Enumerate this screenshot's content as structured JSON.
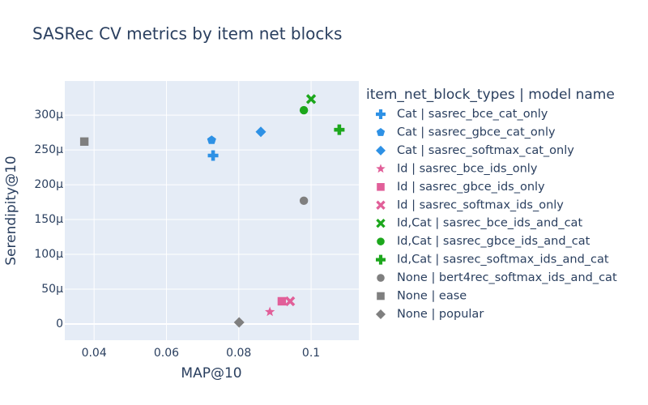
{
  "chart_data": {
    "type": "scatter",
    "title": "SASRec CV metrics by item net blocks",
    "x_label": "MAP@10",
    "y_label": "Serendipity@10",
    "legend_title": "item_net_block_types  |  model name",
    "xlim": [
      0.0319,
      0.1132
    ],
    "ylim": [
      -2.33e-05,
      0.000349
    ],
    "xticks": [
      0.04,
      0.06,
      0.08,
      0.1
    ],
    "yticks": [
      0,
      {
        "value": 5e-05,
        "label": "50µ"
      },
      {
        "value": 0.0001,
        "label": "100µ"
      },
      {
        "value": 0.00015,
        "label": "150µ"
      },
      {
        "value": 0.0002,
        "label": "200µ"
      },
      {
        "value": 0.00025,
        "label": "250µ"
      },
      {
        "value": 0.0003,
        "label": "300µ"
      }
    ],
    "grid": true,
    "series": [
      {
        "name": "Cat  |  sasrec_bce_cat_only",
        "color": "#2E91E5",
        "symbol": "cross",
        "x": [
          0.0729
        ],
        "values": [
          0.000242
        ]
      },
      {
        "name": "Cat  |  sasrec_gbce_cat_only",
        "color": "#2E91E5",
        "symbol": "pentagon",
        "x": [
          0.0725
        ],
        "values": [
          0.000264
        ]
      },
      {
        "name": "Cat  |  sasrec_softmax_cat_only",
        "color": "#2E91E5",
        "symbol": "diamond",
        "x": [
          0.0861
        ],
        "values": [
          0.000276
        ]
      },
      {
        "name": "Id  |  sasrec_bce_ids_only",
        "color": "#E15F99",
        "symbol": "star",
        "x": [
          0.0886
        ],
        "values": [
          1.74e-05
        ]
      },
      {
        "name": "Id  |  sasrec_gbce_ids_only",
        "color": "#E15F99",
        "symbol": "square",
        "x": [
          0.0919
        ],
        "values": [
          3.26e-05
        ]
      },
      {
        "name": "Id  |  sasrec_softmax_ids_only",
        "color": "#E15F99",
        "symbol": "x",
        "x": [
          0.0942
        ],
        "values": [
          3.26e-05
        ]
      },
      {
        "name": "Id,Cat  |  sasrec_bce_ids_and_cat",
        "color": "#1CA71C",
        "symbol": "x",
        "x": [
          0.1
        ],
        "values": [
          0.000323
        ]
      },
      {
        "name": "Id,Cat  |  sasrec_gbce_ids_and_cat",
        "color": "#1CA71C",
        "symbol": "circle",
        "x": [
          0.098
        ],
        "values": [
          0.000307
        ]
      },
      {
        "name": "Id,Cat  |  sasrec_softmax_ids_and_cat",
        "color": "#1CA71C",
        "symbol": "cross",
        "x": [
          0.1078
        ],
        "values": [
          0.000279
        ]
      },
      {
        "name": "None  |  bert4rec_softmax_ids_and_cat",
        "color": "#7F7F7F",
        "symbol": "circle",
        "x": [
          0.098
        ],
        "values": [
          0.000177
        ]
      },
      {
        "name": "None  |  ease",
        "color": "#7F7F7F",
        "symbol": "square",
        "x": [
          0.0373
        ],
        "values": [
          0.000262
        ]
      },
      {
        "name": "None  |  popular",
        "color": "#7F7F7F",
        "symbol": "diamond",
        "x": [
          0.0801
        ],
        "values": [
          2.3e-06
        ]
      }
    ]
  }
}
